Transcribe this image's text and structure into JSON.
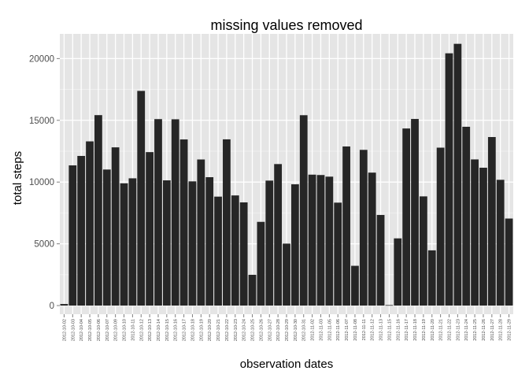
{
  "chart_data": {
    "type": "bar",
    "title": "missing values removed",
    "xlabel": "observation dates",
    "ylabel": "total steps",
    "ylim": [
      -700,
      22000
    ],
    "yticks": [
      0,
      5000,
      10000,
      15000,
      20000
    ],
    "ytick_labels": [
      "0",
      "5000",
      "10000",
      "15000",
      "20000"
    ],
    "grid": true,
    "colors": {
      "panel": "#e5e5e5",
      "grid_major": "#ffffff",
      "grid_minor": "#f2f2f2",
      "bar": "#262626",
      "tick": "#7f7f7f"
    },
    "categories": [
      "2012-10-02",
      "2012-10-03",
      "2012-10-04",
      "2012-10-05",
      "2012-10-06",
      "2012-10-07",
      "2012-10-09",
      "2012-10-10",
      "2012-10-11",
      "2012-10-12",
      "2012-10-13",
      "2012-10-14",
      "2012-10-15",
      "2012-10-16",
      "2012-10-17",
      "2012-10-18",
      "2012-10-19",
      "2012-10-20",
      "2012-10-21",
      "2012-10-22",
      "2012-10-23",
      "2012-10-24",
      "2012-10-25",
      "2012-10-26",
      "2012-10-27",
      "2012-10-28",
      "2012-10-29",
      "2012-10-30",
      "2012-10-31",
      "2012-11-02",
      "2012-11-03",
      "2012-11-05",
      "2012-11-06",
      "2012-11-07",
      "2012-11-08",
      "2012-11-11",
      "2012-11-12",
      "2012-11-13",
      "2012-11-15",
      "2012-11-16",
      "2012-11-17",
      "2012-11-18",
      "2012-11-19",
      "2012-11-20",
      "2012-11-21",
      "2012-11-22",
      "2012-11-23",
      "2012-11-24",
      "2012-11-25",
      "2012-11-26",
      "2012-11-27",
      "2012-11-28",
      "2012-11-29"
    ],
    "values": [
      126,
      11352,
      12116,
      13294,
      15420,
      11015,
      12811,
      9900,
      10304,
      17382,
      12426,
      15098,
      10139,
      15084,
      13452,
      10056,
      11829,
      10395,
      8821,
      13460,
      8918,
      8355,
      2492,
      6778,
      10119,
      11458,
      5018,
      9819,
      15414,
      10600,
      10571,
      10439,
      8334,
      12883,
      3219,
      12608,
      10765,
      7336,
      41,
      5441,
      14339,
      15110,
      8841,
      4472,
      12787,
      20427,
      21194,
      14478,
      11834,
      11162,
      13646,
      10183,
      7047
    ]
  }
}
